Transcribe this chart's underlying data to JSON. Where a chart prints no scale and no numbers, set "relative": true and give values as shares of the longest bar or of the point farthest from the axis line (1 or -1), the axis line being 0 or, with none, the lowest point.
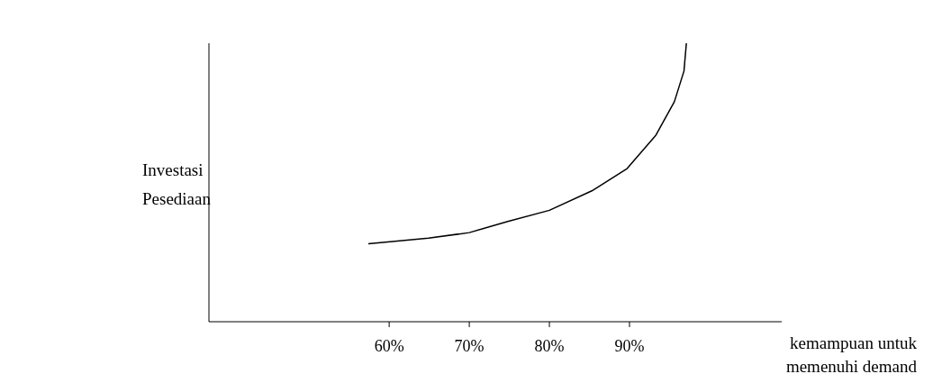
{
  "chart_data": {
    "type": "line",
    "relative": true,
    "tick_labels": "x",
    "xlabel": "kemampuan untuk memenuhi demand",
    "ylabel": "Investasi Pesediaan",
    "x": [
      57.4,
      64.9,
      70,
      74.8,
      80,
      85.3,
      89.7,
      93.3,
      95.6,
      96.8,
      97.1
    ],
    "series": [
      {
        "color": "#000000",
        "values": [
          0.28,
          0.3,
          0.32,
          0.36,
          0.4,
          0.47,
          0.55,
          0.67,
          0.79,
          0.9,
          1
        ]
      }
    ],
    "xlim": [
      37.5,
      109
    ],
    "xticks": [
      {
        "value": 60,
        "label": "60%"
      },
      {
        "value": 70,
        "label": "70%"
      },
      {
        "value": 80,
        "label": "80%"
      },
      {
        "value": 90,
        "label": "90%"
      }
    ],
    "grid": false,
    "legend": false,
    "marker": "none",
    "line_style": "solid"
  }
}
